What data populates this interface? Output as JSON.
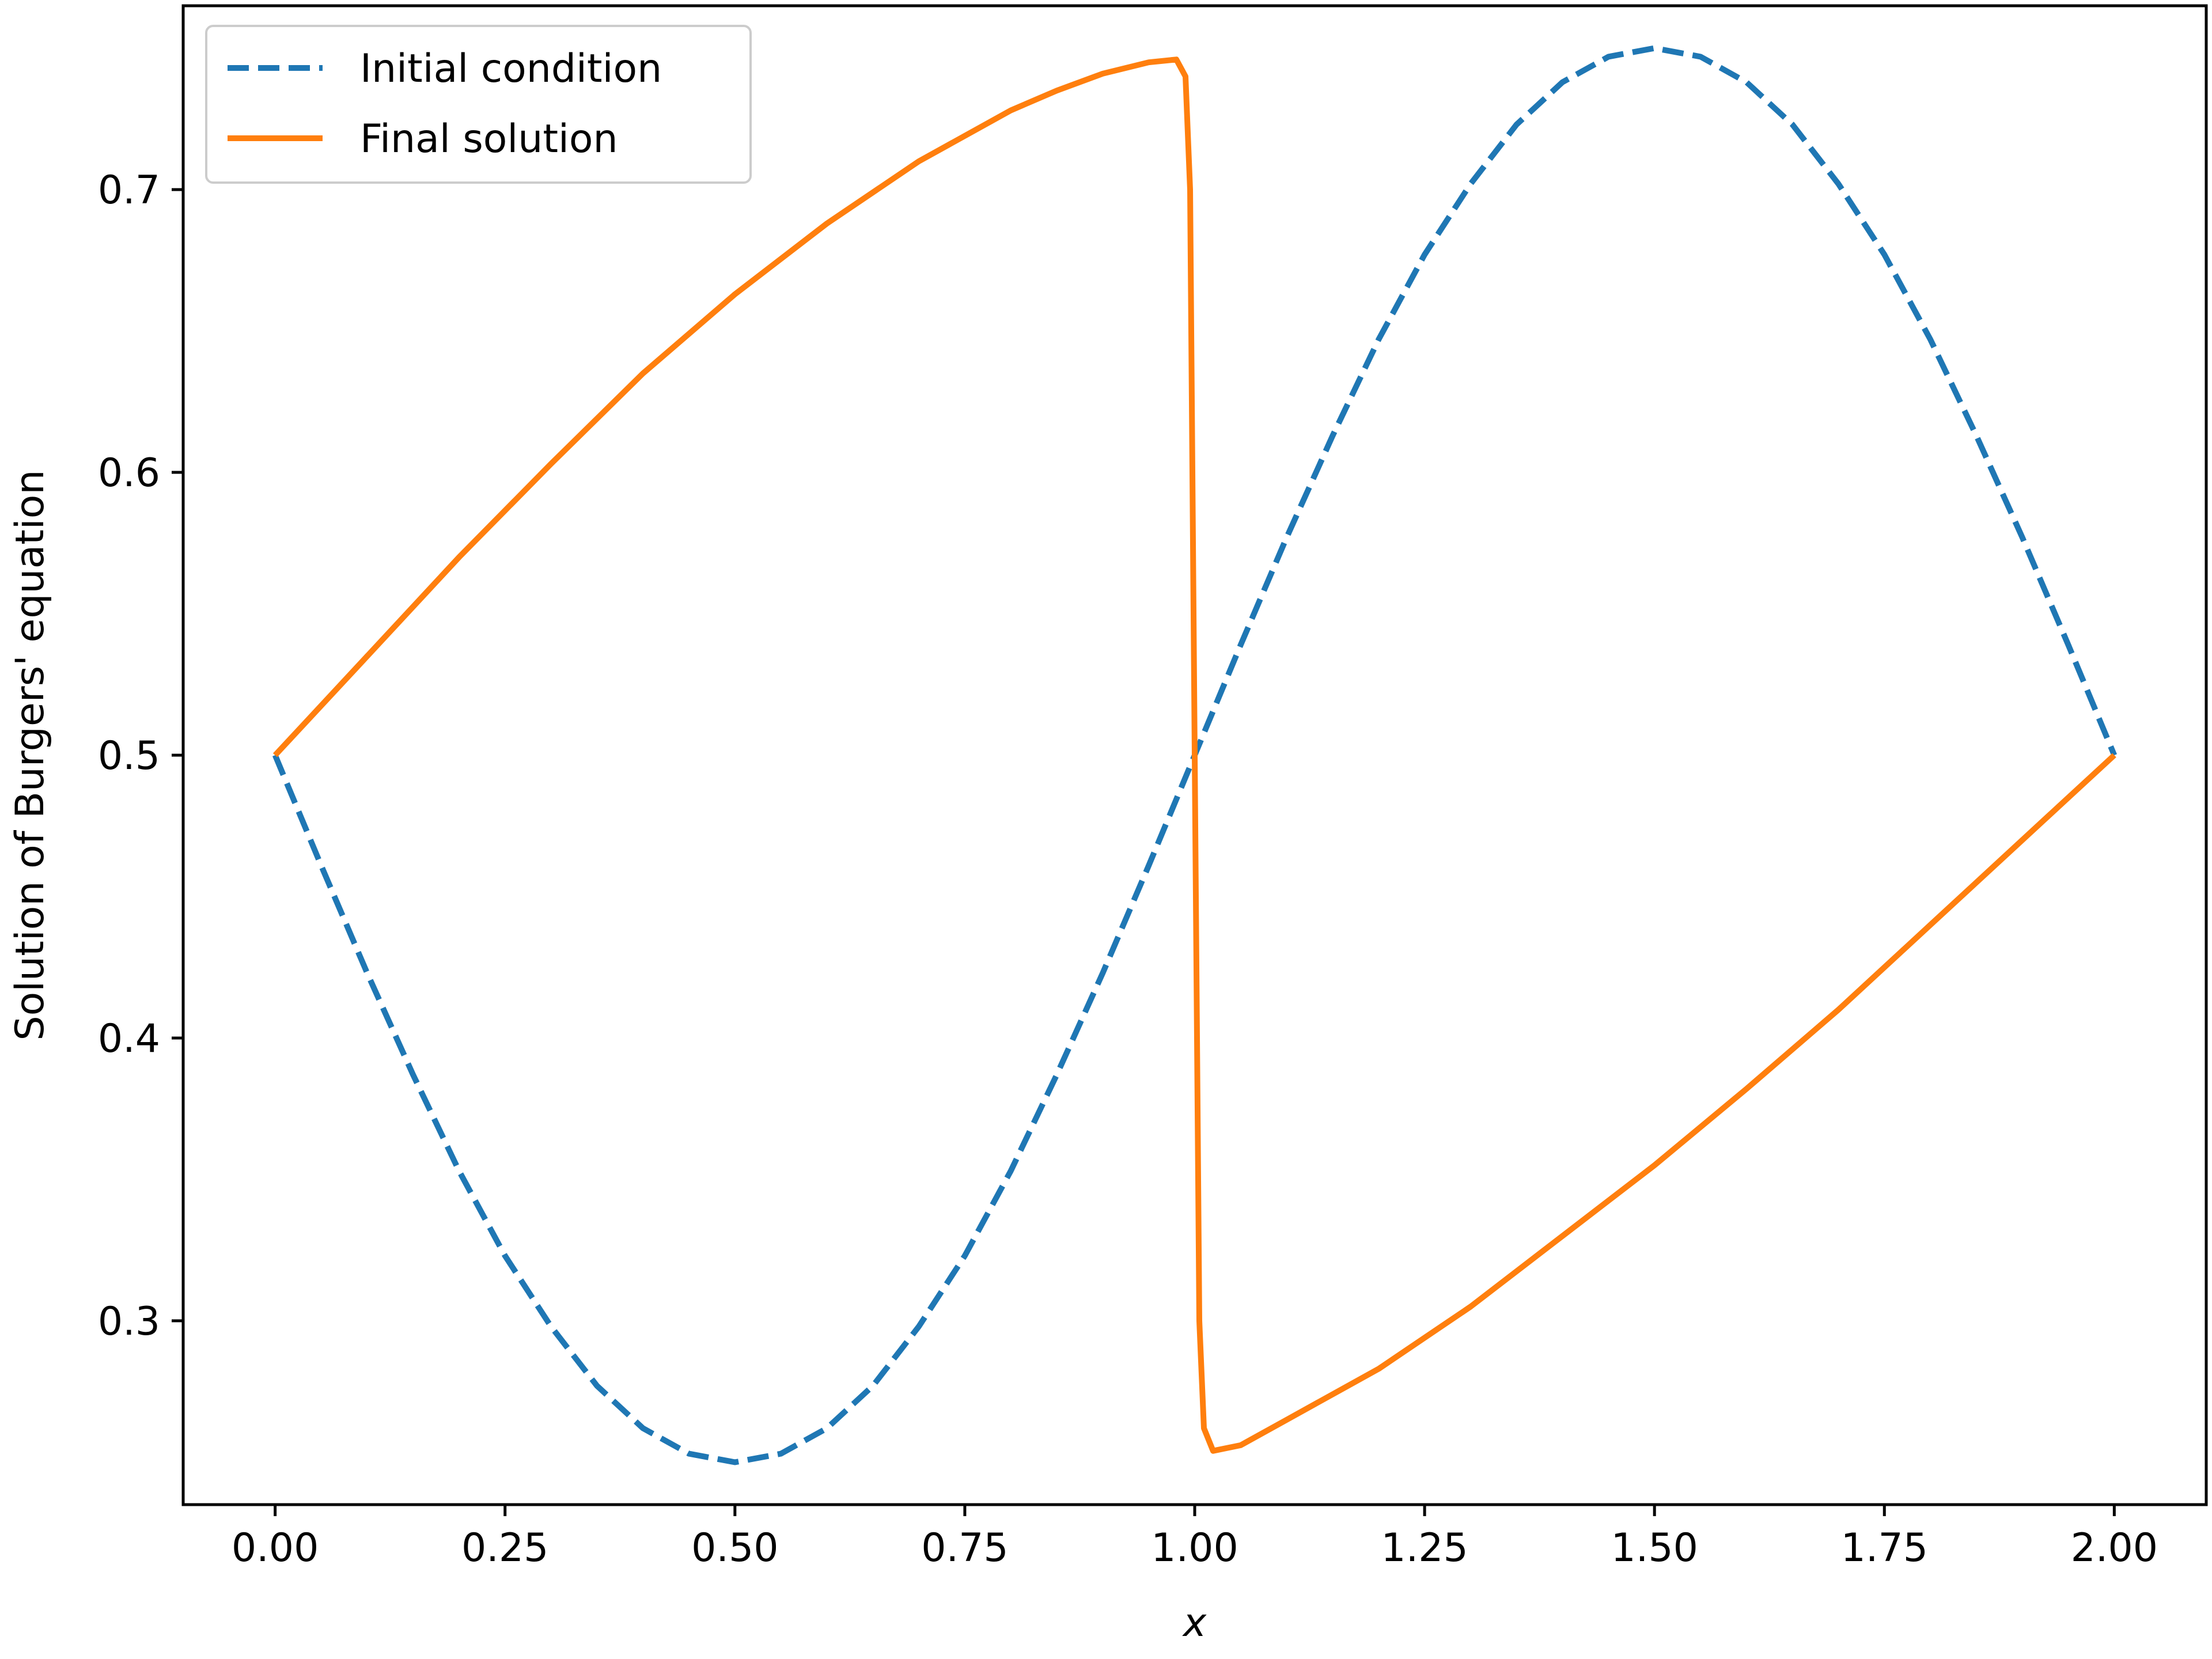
{
  "chart_data": {
    "type": "line",
    "title": "",
    "xlabel": "x",
    "ylabel": "Solution of Burgers' equation",
    "xlim": [
      -0.1,
      2.1
    ],
    "ylim": [
      0.235,
      0.765
    ],
    "grid": false,
    "legend_position": "top-left",
    "x_ticks": [
      "0.00",
      "0.25",
      "0.50",
      "0.75",
      "1.00",
      "1.25",
      "1.50",
      "1.75",
      "2.00"
    ],
    "x_tick_values": [
      0,
      0.25,
      0.5,
      0.75,
      1.0,
      1.25,
      1.5,
      1.75,
      2.0
    ],
    "y_ticks": [
      "0.3",
      "0.4",
      "0.5",
      "0.6",
      "0.7"
    ],
    "y_tick_values": [
      0.3,
      0.4,
      0.5,
      0.6,
      0.7
    ],
    "series": [
      {
        "name": "Initial condition",
        "style": "dashed",
        "color": "#1f77b4",
        "x": [
          0.0,
          0.05,
          0.1,
          0.15,
          0.2,
          0.25,
          0.3,
          0.35,
          0.4,
          0.45,
          0.5,
          0.55,
          0.6,
          0.65,
          0.7,
          0.75,
          0.8,
          0.85,
          0.9,
          0.95,
          1.0,
          1.05,
          1.1,
          1.15,
          1.2,
          1.25,
          1.3,
          1.35,
          1.4,
          1.45,
          1.5,
          1.55,
          1.6,
          1.65,
          1.7,
          1.75,
          1.8,
          1.85,
          1.9,
          1.95,
          2.0
        ],
        "y": [
          0.5,
          0.461,
          0.423,
          0.387,
          0.353,
          0.323,
          0.298,
          0.277,
          0.262,
          0.253,
          0.25,
          0.253,
          0.262,
          0.277,
          0.298,
          0.323,
          0.353,
          0.387,
          0.423,
          0.461,
          0.5,
          0.539,
          0.577,
          0.613,
          0.647,
          0.677,
          0.702,
          0.723,
          0.738,
          0.747,
          0.75,
          0.747,
          0.738,
          0.723,
          0.702,
          0.677,
          0.647,
          0.613,
          0.577,
          0.539,
          0.5
        ]
      },
      {
        "name": "Final solution",
        "style": "solid",
        "color": "#ff7f0e",
        "x": [
          0.0,
          0.1,
          0.2,
          0.3,
          0.4,
          0.5,
          0.6,
          0.7,
          0.8,
          0.85,
          0.9,
          0.95,
          0.98,
          0.99,
          0.995,
          1.0,
          1.005,
          1.01,
          1.02,
          1.05,
          1.1,
          1.2,
          1.3,
          1.4,
          1.5,
          1.6,
          1.7,
          1.8,
          1.9,
          2.0
        ],
        "y": [
          0.5,
          0.535,
          0.57,
          0.603,
          0.635,
          0.663,
          0.688,
          0.71,
          0.728,
          0.735,
          0.741,
          0.745,
          0.746,
          0.74,
          0.7,
          0.5,
          0.3,
          0.262,
          0.254,
          0.256,
          0.265,
          0.283,
          0.305,
          0.33,
          0.355,
          0.382,
          0.41,
          0.44,
          0.47,
          0.5
        ]
      }
    ]
  }
}
